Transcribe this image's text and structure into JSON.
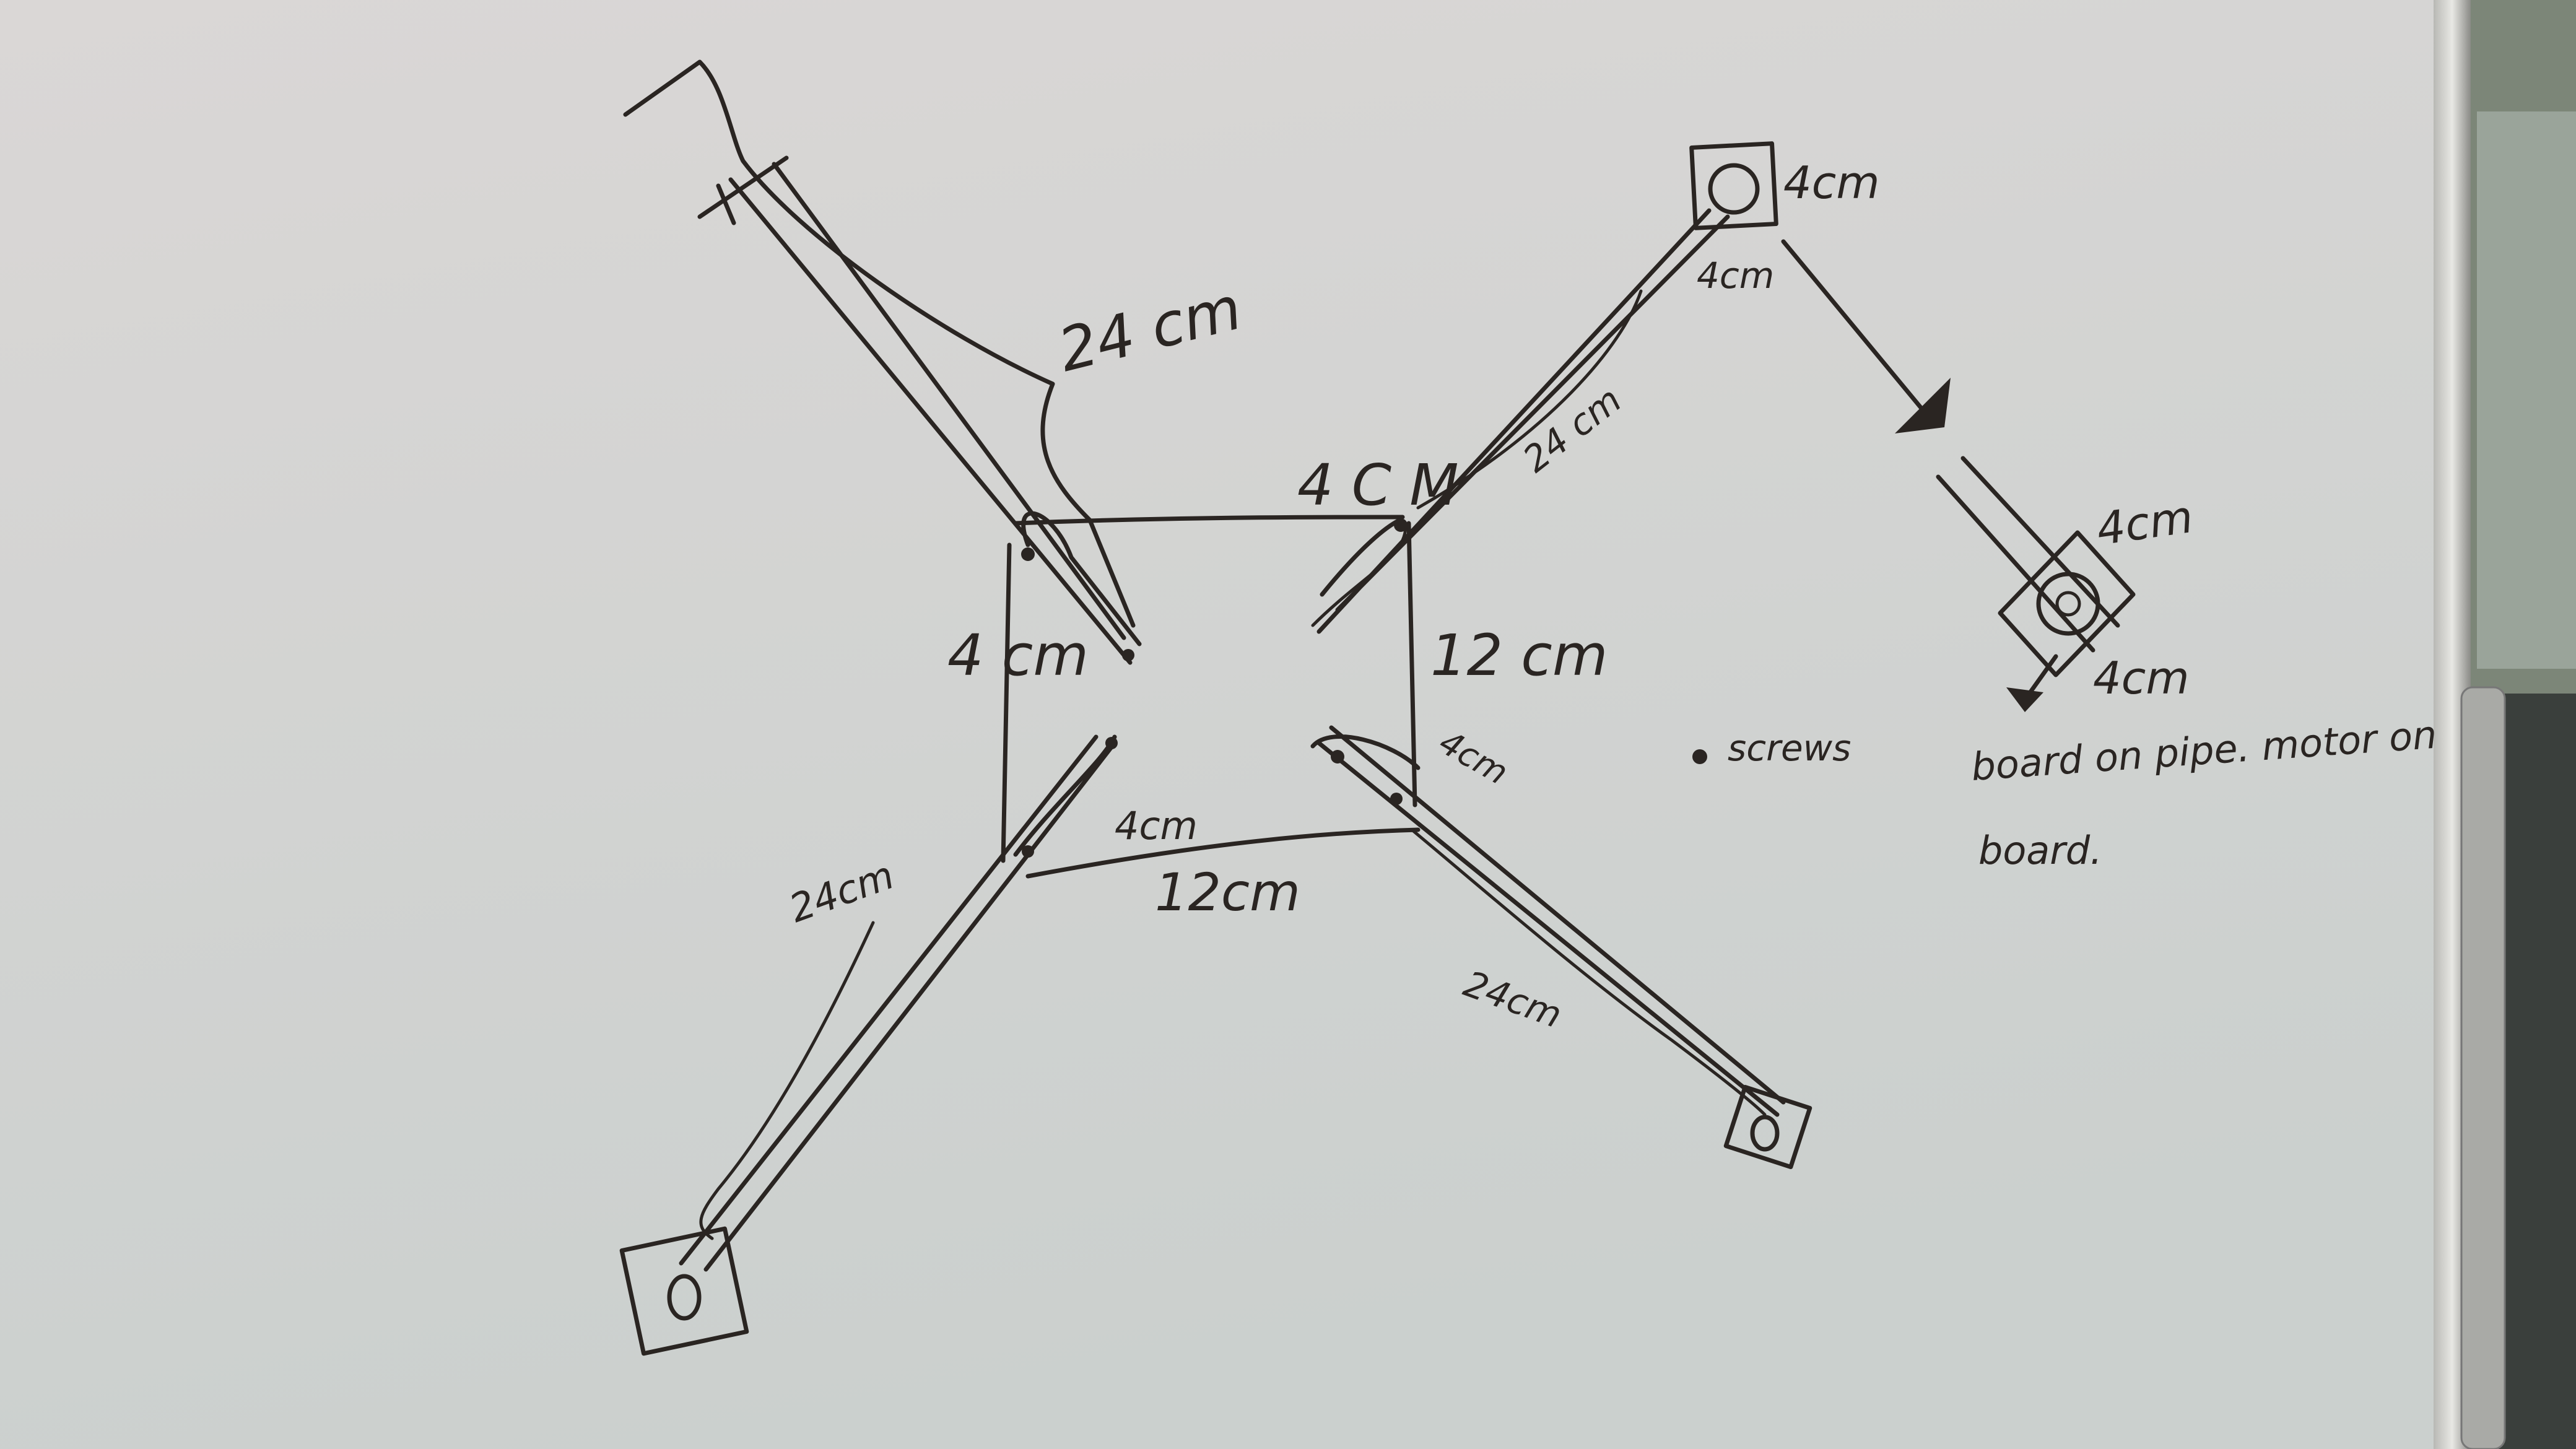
{
  "whiteboard": {
    "colors": {
      "board_top": "#d9d6d5",
      "board_bottom": "#cdd0cf",
      "ink": "#2a2522",
      "frame": "#9c9c98",
      "wall": "#7c8678"
    },
    "labels": {
      "top_left_arm": "24 cm",
      "top_right_arm": "24 cm",
      "bottom_left_arm": "24cm",
      "bottom_right_arm": "24cm",
      "top_center": "4 C M",
      "left_side": "4 cm",
      "right_side": "12 cm",
      "bottom_side": "12cm",
      "bottom_left_corner": "4cm",
      "bottom_right_corner": "4cm",
      "motor_mount_right": "4cm",
      "motor_mount_bottom": "4cm",
      "detail_top": "4cm",
      "detail_bottom": "4cm",
      "legend_screws": "screws",
      "note_line1": "board on pipe. motor on",
      "note_line2": "board."
    }
  }
}
